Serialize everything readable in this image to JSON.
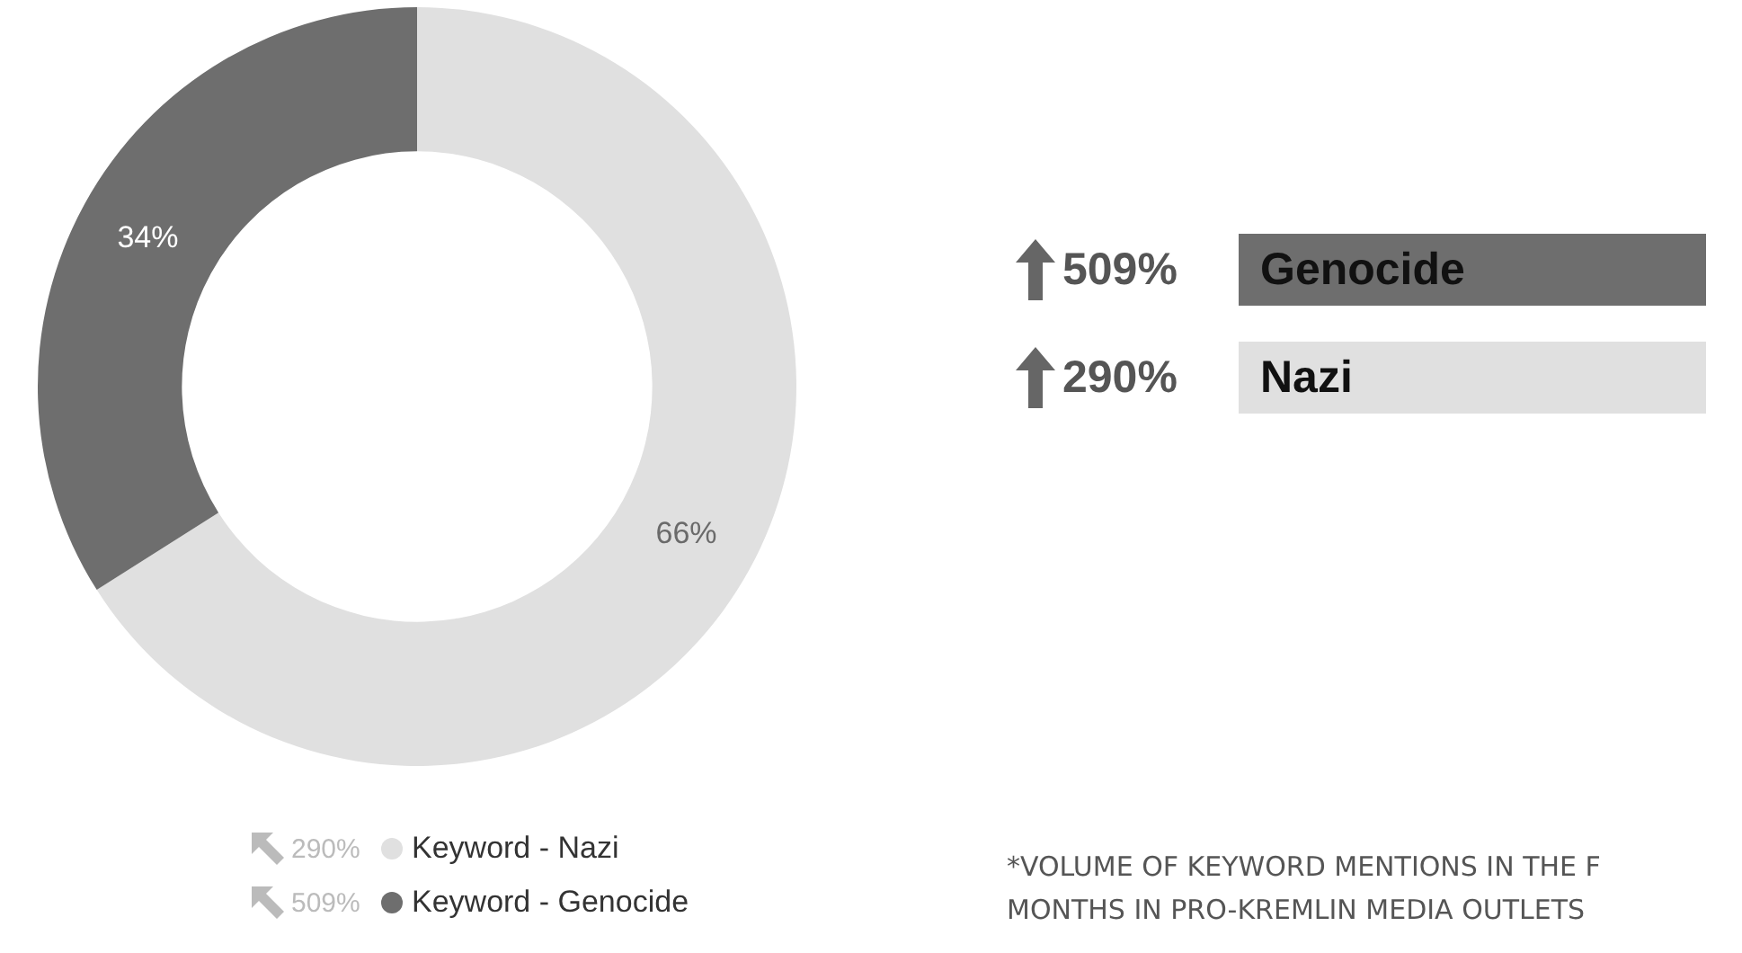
{
  "chart_data": {
    "type": "donut",
    "categories": [
      "Keyword - Nazi",
      "Keyword - Genocide"
    ],
    "values": [
      66,
      34
    ],
    "colors": [
      "#e0e0e0",
      "#6e6e6e"
    ],
    "value_labels": [
      "66%",
      "34%"
    ],
    "legend": "bottom",
    "annotations": [
      "290%",
      "509%",
      "509%",
      "Genocide",
      "290%",
      "Nazi",
      "*VOLUME OF KEYWORD MENTIONS IN THE F MONTHS IN PRO-KREMLIN MEDIA OUTLETS"
    ]
  }
}
